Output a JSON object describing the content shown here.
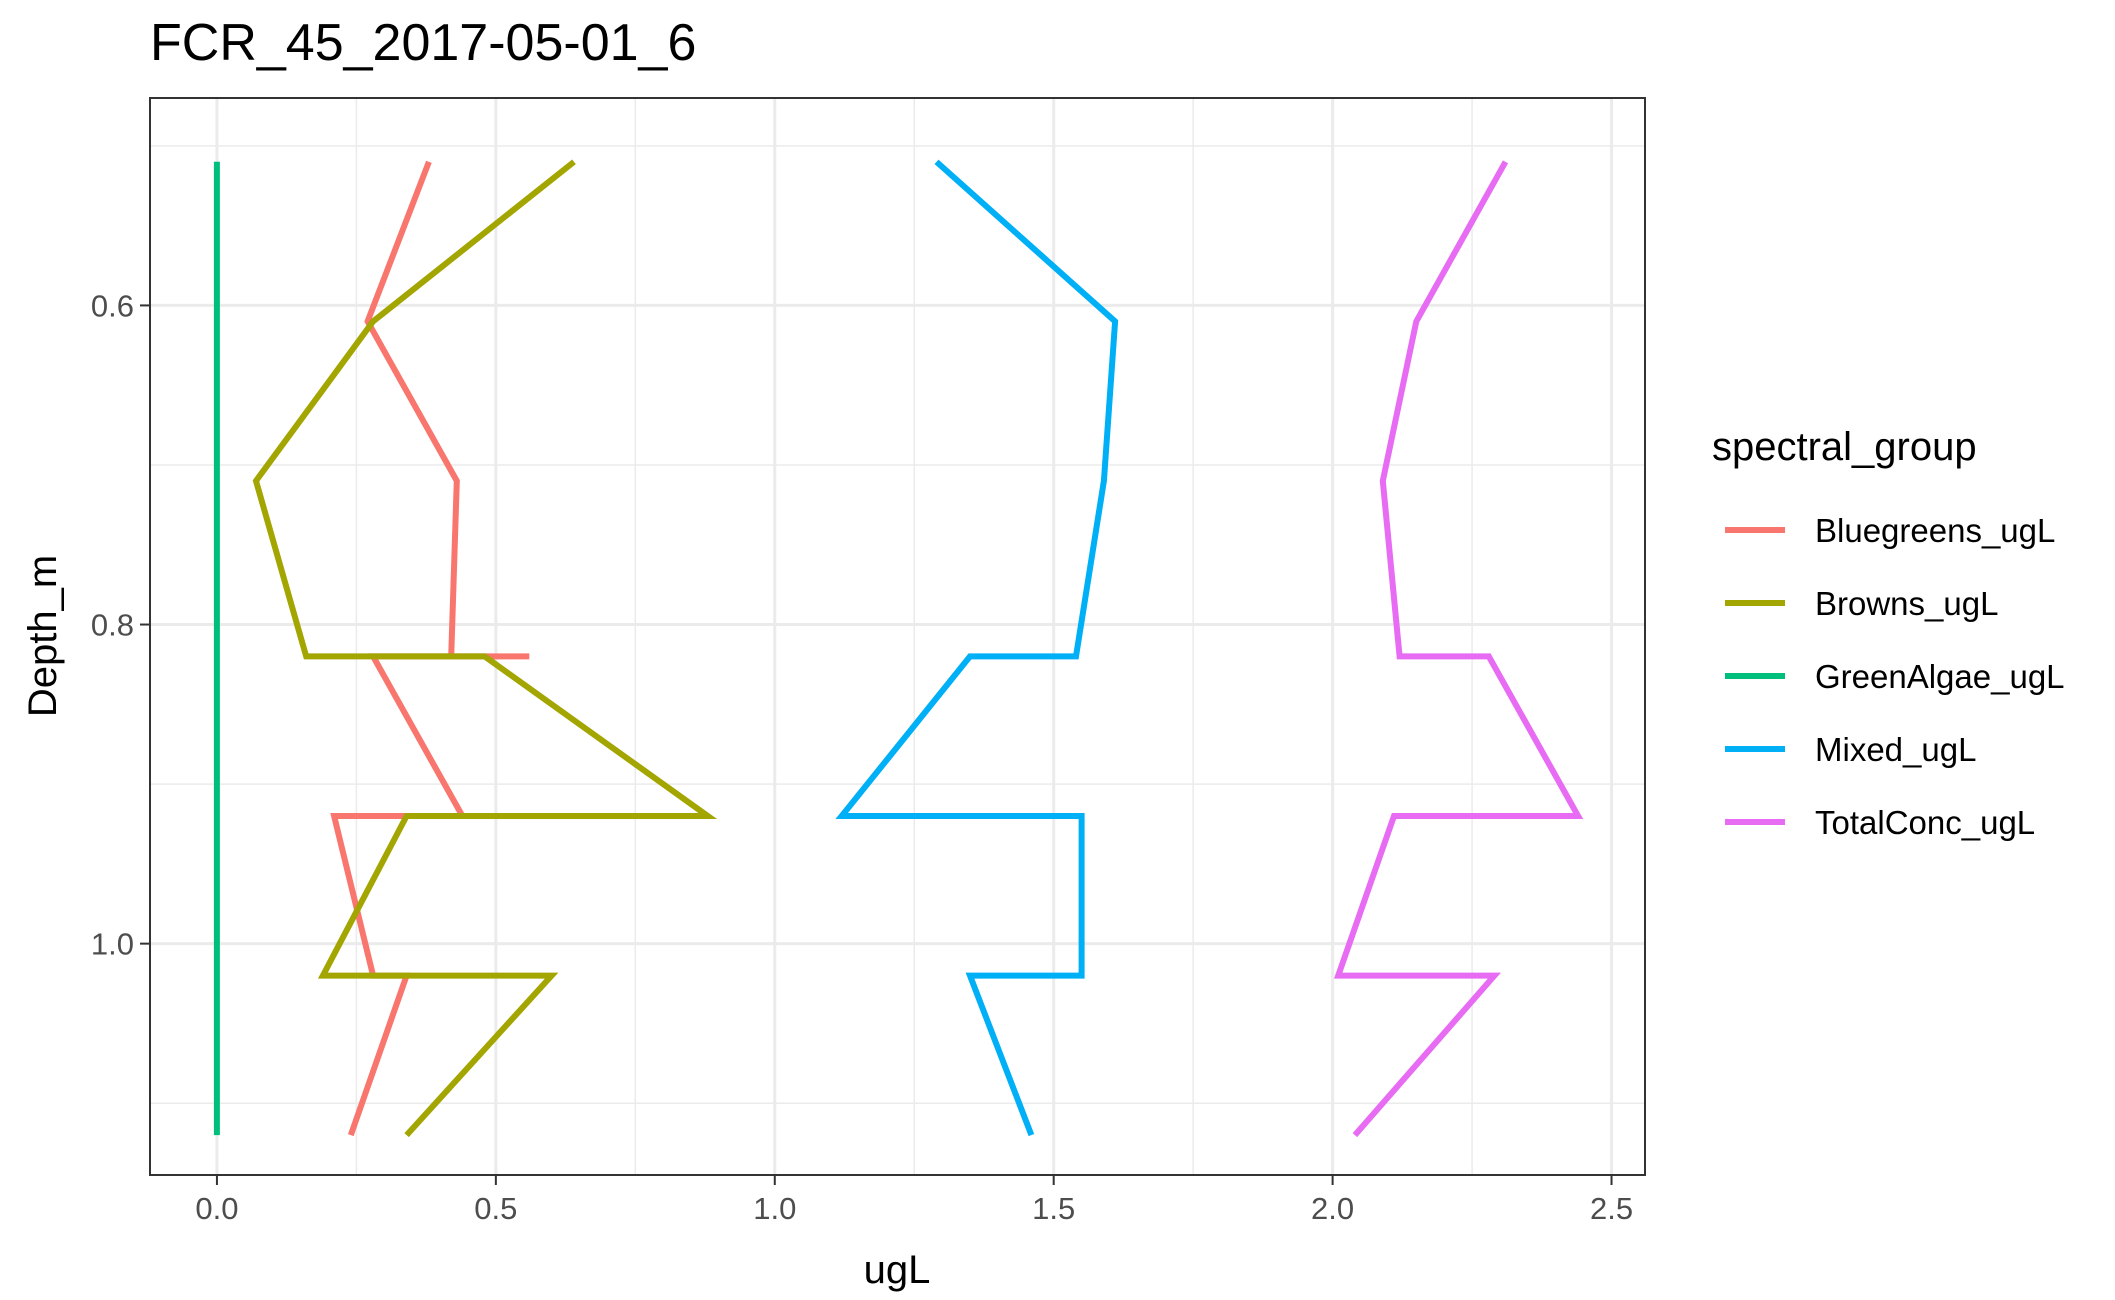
{
  "chart_data": {
    "type": "line",
    "title": "FCR_45_2017-05-01_6",
    "xlabel": "ugL",
    "ylabel": "Depth_m",
    "xlim": [
      -0.12,
      2.56
    ],
    "ylim": [
      1.145,
      0.47
    ],
    "y_reversed": true,
    "grid": true,
    "x_ticks": [
      {
        "value": 0.0,
        "label": "0.0"
      },
      {
        "value": 0.5,
        "label": "0.5"
      },
      {
        "value": 1.0,
        "label": "1.0"
      },
      {
        "value": 1.5,
        "label": "1.5"
      },
      {
        "value": 2.0,
        "label": "2.0"
      },
      {
        "value": 2.5,
        "label": "2.5"
      }
    ],
    "y_ticks": [
      {
        "value": 0.6,
        "label": "0.6"
      },
      {
        "value": 0.8,
        "label": "0.8"
      },
      {
        "value": 1.0,
        "label": "1.0"
      }
    ],
    "legend": {
      "title": "spectral_group",
      "position": "right"
    },
    "series": [
      {
        "name": "Bluegreens_ugL",
        "color": "#F8766D",
        "points": [
          [
            0.38,
            0.51
          ],
          [
            0.27,
            0.61
          ],
          [
            0.43,
            0.71
          ],
          [
            0.42,
            0.82
          ],
          [
            0.56,
            0.82
          ],
          [
            0.28,
            0.82
          ],
          [
            0.44,
            0.92
          ],
          [
            0.21,
            0.92
          ],
          [
            0.28,
            1.02
          ],
          [
            0.34,
            1.02
          ],
          [
            0.24,
            1.12
          ]
        ]
      },
      {
        "name": "Browns_ugL",
        "color": "#A3A500",
        "points": [
          [
            0.64,
            0.51
          ],
          [
            0.28,
            0.61
          ],
          [
            0.07,
            0.71
          ],
          [
            0.16,
            0.82
          ],
          [
            0.48,
            0.82
          ],
          [
            0.88,
            0.92
          ],
          [
            0.34,
            0.92
          ],
          [
            0.19,
            1.02
          ],
          [
            0.6,
            1.02
          ],
          [
            0.34,
            1.12
          ]
        ]
      },
      {
        "name": "GreenAlgae_ugL",
        "color": "#00BF7D",
        "points": [
          [
            0.0,
            0.51
          ],
          [
            0.0,
            1.12
          ]
        ]
      },
      {
        "name": "Mixed_ugL",
        "color": "#00B0F6",
        "points": [
          [
            1.29,
            0.51
          ],
          [
            1.61,
            0.61
          ],
          [
            1.59,
            0.71
          ],
          [
            1.54,
            0.82
          ],
          [
            1.35,
            0.82
          ],
          [
            1.12,
            0.92
          ],
          [
            1.55,
            0.92
          ],
          [
            1.55,
            1.02
          ],
          [
            1.35,
            1.02
          ],
          [
            1.46,
            1.12
          ]
        ]
      },
      {
        "name": "TotalConc_ugL",
        "color": "#E76BF3",
        "points": [
          [
            2.31,
            0.51
          ],
          [
            2.15,
            0.61
          ],
          [
            2.09,
            0.71
          ],
          [
            2.12,
            0.82
          ],
          [
            2.28,
            0.82
          ],
          [
            2.44,
            0.92
          ],
          [
            2.11,
            0.92
          ],
          [
            2.01,
            1.02
          ],
          [
            2.29,
            1.02
          ],
          [
            2.04,
            1.12
          ]
        ]
      }
    ]
  }
}
